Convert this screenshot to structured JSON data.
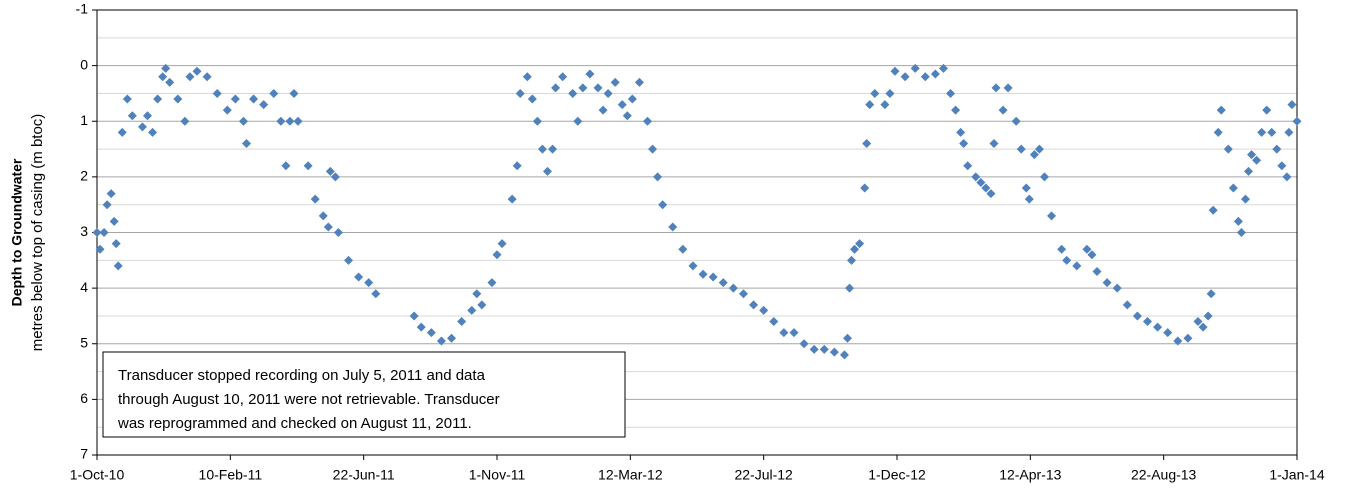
{
  "chart_data": {
    "type": "scatter",
    "y_label": [
      "Depth to Groundwater",
      "metres below top of casing (m btoc)"
    ],
    "annotation": [
      "Transducer stopped recording on July 5, 2011 and data",
      "through August 10, 2011 were not retrievable.  Transducer",
      "was reprogrammed and checked on August 11, 2011."
    ],
    "color": "#4f81bd",
    "marker": "diamond",
    "y_inverted": true,
    "grid": true,
    "xlim": [
      "2010-10-01",
      "2014-01-01"
    ],
    "xticks": [
      {
        "value": "2010-10-01",
        "label": "1-Oct-10"
      },
      {
        "value": "2011-02-10",
        "label": "10-Feb-11"
      },
      {
        "value": "2011-06-22",
        "label": "22-Jun-11"
      },
      {
        "value": "2011-11-01",
        "label": "1-Nov-11"
      },
      {
        "value": "2012-03-12",
        "label": "12-Mar-12"
      },
      {
        "value": "2012-07-22",
        "label": "22-Jul-12"
      },
      {
        "value": "2012-12-01",
        "label": "1-Dec-12"
      },
      {
        "value": "2013-04-12",
        "label": "12-Apr-13"
      },
      {
        "value": "2013-08-22",
        "label": "22-Aug-13"
      },
      {
        "value": "2014-01-01",
        "label": "1-Jan-14"
      }
    ],
    "ylim": [
      -1,
      7
    ],
    "yticks": [
      -1,
      0,
      1,
      2,
      3,
      4,
      5,
      6,
      7
    ],
    "minor_yticks": [
      -0.5,
      0.5,
      1.5,
      2.5,
      3.5,
      4.5,
      5.5,
      6.5
    ],
    "x": [
      "2010-10-01",
      "2010-10-04",
      "2010-10-08",
      "2010-10-11",
      "2010-10-15",
      "2010-10-18",
      "2010-10-20",
      "2010-10-22",
      "2010-10-26",
      "2010-10-31",
      "2010-11-05",
      "2010-11-15",
      "2010-11-20",
      "2010-11-25",
      "2010-11-30",
      "2010-12-05",
      "2010-12-08",
      "2010-12-12",
      "2010-12-20",
      "2010-12-27",
      "2011-01-01",
      "2011-01-08",
      "2011-01-18",
      "2011-01-28",
      "2011-02-07",
      "2011-02-15",
      "2011-02-23",
      "2011-02-26",
      "2011-03-05",
      "2011-03-15",
      "2011-03-25",
      "2011-04-01",
      "2011-04-06",
      "2011-04-10",
      "2011-04-14",
      "2011-04-18",
      "2011-04-28",
      "2011-05-05",
      "2011-05-13",
      "2011-05-18",
      "2011-05-20",
      "2011-05-25",
      "2011-05-28",
      "2011-06-07",
      "2011-06-17",
      "2011-06-27",
      "2011-07-04",
      "2011-08-11",
      "2011-08-18",
      "2011-08-28",
      "2011-09-07",
      "2011-09-17",
      "2011-09-27",
      "2011-10-07",
      "2011-10-12",
      "2011-10-17",
      "2011-10-27",
      "2011-11-01",
      "2011-11-06",
      "2011-11-16",
      "2011-11-21",
      "2011-11-24",
      "2011-12-01",
      "2011-12-06",
      "2011-12-11",
      "2011-12-16",
      "2011-12-21",
      "2011-12-26",
      "2011-12-29",
      "2012-01-05",
      "2012-01-15",
      "2012-01-20",
      "2012-01-25",
      "2012-02-01",
      "2012-02-09",
      "2012-02-14",
      "2012-02-19",
      "2012-02-26",
      "2012-03-04",
      "2012-03-09",
      "2012-03-14",
      "2012-03-21",
      "2012-03-29",
      "2012-04-03",
      "2012-04-08",
      "2012-04-13",
      "2012-04-23",
      "2012-05-03",
      "2012-05-13",
      "2012-05-23",
      "2012-06-02",
      "2012-06-12",
      "2012-06-22",
      "2012-07-02",
      "2012-07-12",
      "2012-07-22",
      "2012-08-01",
      "2012-08-11",
      "2012-08-21",
      "2012-08-31",
      "2012-09-10",
      "2012-09-20",
      "2012-09-30",
      "2012-10-10",
      "2012-10-13",
      "2012-10-15",
      "2012-10-17",
      "2012-10-20",
      "2012-10-25",
      "2012-10-30",
      "2012-11-01",
      "2012-11-04",
      "2012-11-09",
      "2012-11-19",
      "2012-11-24",
      "2012-11-29",
      "2012-12-09",
      "2012-12-19",
      "2012-12-29",
      "2013-01-08",
      "2013-01-16",
      "2013-01-23",
      "2013-01-28",
      "2013-02-02",
      "2013-02-05",
      "2013-02-09",
      "2013-02-17",
      "2013-02-22",
      "2013-02-27",
      "2013-03-04",
      "2013-03-07",
      "2013-03-09",
      "2013-03-16",
      "2013-03-21",
      "2013-03-29",
      "2013-04-03",
      "2013-04-08",
      "2013-04-11",
      "2013-04-16",
      "2013-04-21",
      "2013-04-26",
      "2013-05-03",
      "2013-05-13",
      "2013-05-18",
      "2013-05-28",
      "2013-06-07",
      "2013-06-12",
      "2013-06-17",
      "2013-06-27",
      "2013-07-07",
      "2013-07-17",
      "2013-07-27",
      "2013-08-06",
      "2013-08-16",
      "2013-08-26",
      "2013-09-05",
      "2013-09-15",
      "2013-09-25",
      "2013-09-30",
      "2013-10-05",
      "2013-10-08",
      "2013-10-10",
      "2013-10-15",
      "2013-10-18",
      "2013-10-25",
      "2013-10-30",
      "2013-11-04",
      "2013-11-07",
      "2013-11-11",
      "2013-11-14",
      "2013-11-17",
      "2013-11-22",
      "2013-11-27",
      "2013-12-02",
      "2013-12-07",
      "2013-12-12",
      "2013-12-17",
      "2013-12-22",
      "2013-12-24",
      "2013-12-27",
      "2014-01-01"
    ],
    "values": [
      3.0,
      3.3,
      3.0,
      2.5,
      2.3,
      2.8,
      3.2,
      3.6,
      1.2,
      0.6,
      0.9,
      1.1,
      0.9,
      1.2,
      0.6,
      0.2,
      0.05,
      0.3,
      0.6,
      1.0,
      0.2,
      0.1,
      0.2,
      0.5,
      0.8,
      0.6,
      1.0,
      1.4,
      0.6,
      0.7,
      0.5,
      1.0,
      1.8,
      1.0,
      0.5,
      1.0,
      1.8,
      2.4,
      2.7,
      2.9,
      1.9,
      2.0,
      3.0,
      3.5,
      3.8,
      3.9,
      4.1,
      4.5,
      4.7,
      4.8,
      4.95,
      4.9,
      4.6,
      4.4,
      4.1,
      4.3,
      3.9,
      3.4,
      3.2,
      2.4,
      1.8,
      0.5,
      0.2,
      0.6,
      1.0,
      1.5,
      1.9,
      1.5,
      0.4,
      0.2,
      0.5,
      1.0,
      0.4,
      0.15,
      0.4,
      0.8,
      0.5,
      0.3,
      0.7,
      0.9,
      0.6,
      0.3,
      1.0,
      1.5,
      2.0,
      2.5,
      2.9,
      3.3,
      3.6,
      3.75,
      3.8,
      3.9,
      4.0,
      4.1,
      4.3,
      4.4,
      4.6,
      4.8,
      4.8,
      5.0,
      5.1,
      5.1,
      5.15,
      5.2,
      4.9,
      4.0,
      3.5,
      3.3,
      3.2,
      2.2,
      1.4,
      0.7,
      0.5,
      0.7,
      0.5,
      0.1,
      0.2,
      0.05,
      0.2,
      0.15,
      0.05,
      0.5,
      0.8,
      1.2,
      1.4,
      1.8,
      2.0,
      2.1,
      2.2,
      2.3,
      1.4,
      0.4,
      0.8,
      0.4,
      1.0,
      1.5,
      2.2,
      2.4,
      1.6,
      1.5,
      2.0,
      2.7,
      3.3,
      3.5,
      3.6,
      3.3,
      3.4,
      3.7,
      3.9,
      4.0,
      4.3,
      4.5,
      4.6,
      4.7,
      4.8,
      4.95,
      4.9,
      4.6,
      4.7,
      4.5,
      4.1,
      2.6,
      1.2,
      0.8,
      1.5,
      2.2,
      2.8,
      3.0,
      2.4,
      1.9,
      1.6,
      1.7,
      1.2,
      0.8,
      1.2,
      1.5,
      1.8,
      2.0,
      1.2,
      0.7,
      1.0
    ]
  }
}
